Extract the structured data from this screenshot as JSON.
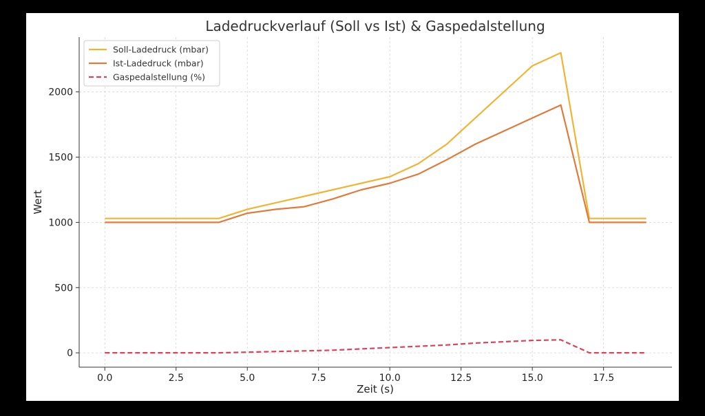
{
  "chart_data": {
    "type": "line",
    "title": "Ladedruckverlauf (Soll vs Ist) & Gaspedalstellung",
    "xlabel": "Zeit (s)",
    "ylabel": "Wert",
    "xlim": [
      -0.9,
      19.9
    ],
    "ylim": [
      -110,
      2420
    ],
    "xticks": [
      0,
      2.5,
      5,
      7.5,
      10,
      12.5,
      15,
      17.5
    ],
    "xtick_labels": [
      "0.0",
      "2.5",
      "5.0",
      "7.5",
      "10.0",
      "12.5",
      "15.0",
      "17.5"
    ],
    "yticks": [
      0,
      500,
      1000,
      1500,
      2000
    ],
    "ytick_labels": [
      "0",
      "500",
      "1000",
      "1500",
      "2000"
    ],
    "grid": true,
    "legend_position": "top-left",
    "x": [
      0,
      1,
      2,
      3,
      4,
      5,
      6,
      7,
      8,
      9,
      10,
      11,
      12,
      13,
      14,
      15,
      16,
      17,
      18,
      19
    ],
    "series": [
      {
        "name": "Soll-Ladedruck (mbar)",
        "color": "#f0b433",
        "style": "solid",
        "values": [
          1030,
          1030,
          1030,
          1030,
          1030,
          1100,
          1150,
          1200,
          1250,
          1300,
          1350,
          1450,
          1600,
          1800,
          2000,
          2200,
          2300,
          1030,
          1030,
          1030
        ]
      },
      {
        "name": "Ist-Ladedruck (mbar)",
        "color": "#e07a3a",
        "style": "solid",
        "values": [
          1000,
          1000,
          1000,
          1000,
          1000,
          1070,
          1100,
          1120,
          1180,
          1250,
          1300,
          1370,
          1480,
          1600,
          1700,
          1800,
          1900,
          1000,
          1000,
          1000
        ]
      },
      {
        "name": "Gaspedalstellung (%)",
        "color": "#d9425a",
        "style": "dashed",
        "values": [
          0,
          0,
          0,
          0,
          0,
          5,
          10,
          15,
          20,
          30,
          40,
          50,
          60,
          75,
          85,
          95,
          100,
          0,
          0,
          0
        ]
      }
    ]
  }
}
